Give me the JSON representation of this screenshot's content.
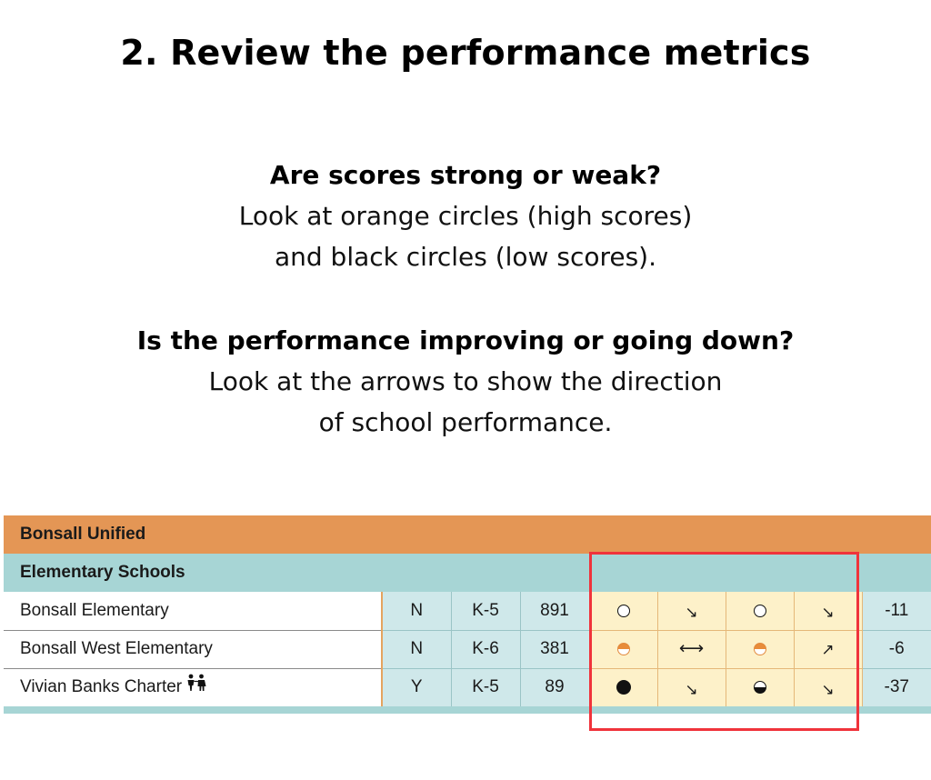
{
  "title": "2. Review the performance metrics",
  "instructions": {
    "q1": "Are scores strong or weak?",
    "q1_lines": [
      "Look at orange circles (high scores)",
      "and black circles (low scores)."
    ],
    "q2": "Is the performance improving or going down?",
    "q2_lines": [
      "Look at the arrows to show the direction",
      "of school performance."
    ]
  },
  "table": {
    "district": "Bonsall Unified",
    "level": "Elementary Schools",
    "rows": [
      {
        "name": "Bonsall Elementary",
        "charter": "N",
        "grades": "K-5",
        "enrollment": "891",
        "score1": "empty-circle-icon",
        "trend1": "↘",
        "score2": "empty-circle-icon",
        "trend2": "↘",
        "change": "-11"
      },
      {
        "name": "Bonsall West Elementary",
        "charter": "N",
        "grades": "K-6",
        "enrollment": "381",
        "score1": "half-orange-circle-icon",
        "trend1": "⟷",
        "score2": "half-orange-circle-icon",
        "trend2": "↗",
        "change": "-6"
      },
      {
        "name": "Vivian Banks Charter",
        "charter": "Y",
        "grades": "K-5",
        "enrollment": "89",
        "score1": "full-black-circle-icon",
        "trend1": "↘",
        "score2": "half-black-circle-icon",
        "trend2": "↘",
        "change": "-37"
      }
    ]
  },
  "colors": {
    "district_band": "#e49655",
    "level_band": "#a7d5d5",
    "metric_cell": "#fdf1c9",
    "meta_cell": "#cfe8ea",
    "highlight": "#f0333b"
  }
}
